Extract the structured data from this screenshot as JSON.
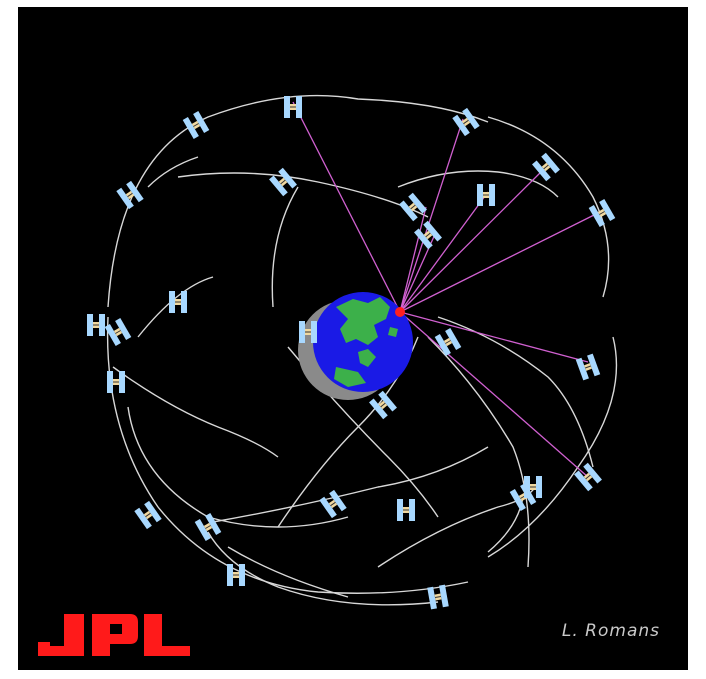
{
  "credit": {
    "text": "L. Romans"
  },
  "logo": {
    "text": "JPL",
    "color": "#ff1a1a"
  },
  "colors": {
    "background": "#000000",
    "orbit": "#d8d8d8",
    "signal": "#d060d0",
    "receiver": "#ff2020",
    "ocean": "#1a1ae6",
    "land": "#3cb04a",
    "shadow": "#8a8a8a",
    "satellite": "#a8d8ff",
    "satellite_body": "#f0d8a0"
  },
  "icons": {
    "satellite": "satellite-icon",
    "earth": "earth-globe-icon",
    "receiver": "receiver-icon"
  }
}
